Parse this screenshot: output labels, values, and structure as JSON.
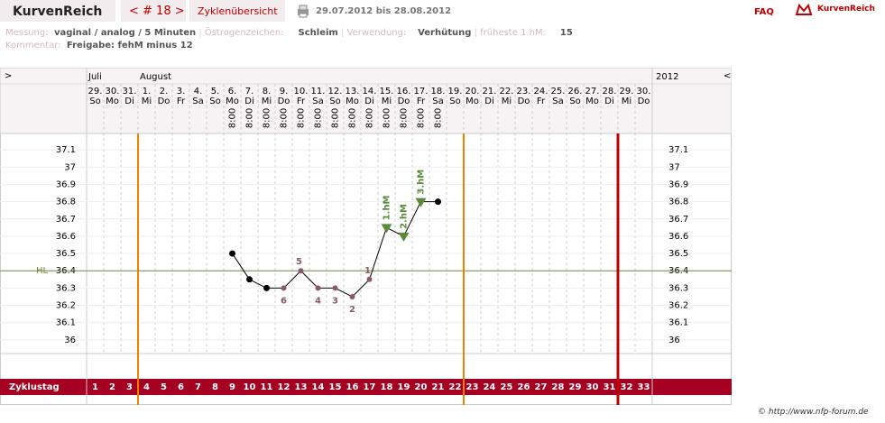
{
  "header": {
    "brand": "KurvenReich",
    "cycle_nav": "< # 18 >",
    "overview": "Zyklenübersicht",
    "range": "29.07.2012 bis 28.08.2012",
    "faq": "FAQ",
    "logo_text": "KurvenReich"
  },
  "info": {
    "measure_label": "Messung:",
    "measure": "vaginal / analog / 5 Minuten",
    "estrogen_label": "Östrogenzeichen:",
    "estrogen": "Schleim",
    "use_label": "Verwendung:",
    "use": "Verhütung",
    "earliest_label": "früheste 1.hM:",
    "earliest": "15",
    "comment_label": "Kommentar:",
    "comment": "Freigabe: fehM minus 12"
  },
  "footer": "© http://www.nfp-forum.de",
  "chart_data": {
    "type": "line",
    "nav_prev": ">",
    "nav_next": "<",
    "year": "2012",
    "row_label": "Zyklustag",
    "hl_label": "HL",
    "months": [
      "Juli",
      null,
      null,
      "August",
      null,
      null,
      null,
      null,
      null,
      null,
      null,
      null,
      null,
      null,
      null,
      null,
      null,
      null,
      null,
      null,
      null,
      null,
      null,
      null,
      null,
      null,
      null,
      null,
      null,
      null,
      null,
      null,
      null
    ],
    "dates": [
      "29.",
      "30.",
      "31.",
      "1.",
      "2.",
      "3.",
      "4.",
      "5.",
      "6.",
      "7.",
      "8.",
      "9.",
      "10.",
      "11.",
      "12.",
      "13.",
      "14.",
      "15.",
      "16.",
      "17.",
      "18.",
      "19.",
      "20.",
      "21.",
      "22.",
      "23.",
      "24.",
      "25.",
      "26.",
      "27.",
      "28.",
      "29.",
      "30."
    ],
    "weekdays": [
      "So",
      "Mo",
      "Di",
      "Mi",
      "Do",
      "Fr",
      "Sa",
      "So",
      "Mo",
      "Di",
      "Mi",
      "Do",
      "Fr",
      "Sa",
      "So",
      "Mo",
      "Di",
      "Mi",
      "Do",
      "Fr",
      "Sa",
      "So",
      "Mo",
      "Di",
      "Mi",
      "Do",
      "Fr",
      "Sa",
      "So",
      "Mo",
      "Di",
      "Mi",
      "Do"
    ],
    "times": [
      null,
      null,
      null,
      null,
      null,
      null,
      null,
      null,
      "8:00",
      "8:00",
      "8:00",
      "8:00",
      "8:00",
      "8:00",
      "8:00",
      "8:00",
      "8:00",
      "8:00",
      "8:00",
      "8:00",
      "8:00",
      null,
      null,
      null,
      null,
      null,
      null,
      null,
      null,
      null,
      null,
      null,
      null
    ],
    "cycle_days": [
      1,
      2,
      3,
      4,
      5,
      6,
      7,
      8,
      9,
      10,
      11,
      12,
      13,
      14,
      15,
      16,
      17,
      18,
      19,
      20,
      21,
      22,
      23,
      24,
      25,
      26,
      27,
      28,
      29,
      30,
      31,
      32,
      33
    ],
    "values": [
      null,
      null,
      null,
      null,
      null,
      null,
      null,
      null,
      36.5,
      36.35,
      36.3,
      36.3,
      36.4,
      36.3,
      36.3,
      36.25,
      36.35,
      36.65,
      36.6,
      36.8,
      36.8,
      null,
      null,
      null,
      null,
      null,
      null,
      null,
      null,
      null,
      null,
      null,
      null
    ],
    "point_labels": [
      null,
      null,
      null,
      null,
      null,
      null,
      null,
      null,
      null,
      null,
      null,
      "6",
      "5",
      "4",
      "3",
      "2",
      "1",
      null,
      null,
      null,
      null,
      null,
      null,
      null,
      null,
      null,
      null,
      null,
      null,
      null,
      null,
      null,
      null
    ],
    "hm_labels": [
      null,
      null,
      null,
      null,
      null,
      null,
      null,
      null,
      null,
      null,
      null,
      null,
      null,
      null,
      null,
      null,
      null,
      "1.hM",
      "2.hM",
      "3.hM",
      null,
      null,
      null,
      null,
      null,
      null,
      null,
      null,
      null,
      null,
      null,
      null,
      null
    ],
    "hl": 36.4,
    "ylim": [
      35.9,
      37.2
    ],
    "yticks": [
      36,
      36.1,
      36.2,
      36.3,
      36.4,
      36.5,
      36.6,
      36.7,
      36.8,
      36.9,
      37,
      37.1
    ],
    "line_color": "#000000",
    "low_color": "#8a5a6a",
    "hm_color": "#5a8a3a",
    "hl_color": "#6b8e3a"
  }
}
